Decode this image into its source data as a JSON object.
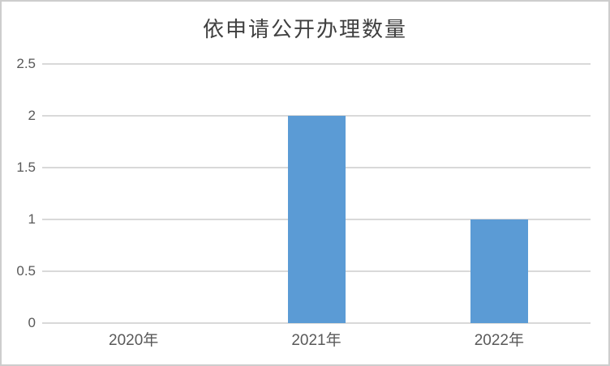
{
  "chart_data": {
    "type": "bar",
    "title": "依申请公开办理数量",
    "categories": [
      "2020年",
      "2021年",
      "2022年"
    ],
    "values": [
      0,
      2,
      1
    ],
    "xlabel": "",
    "ylabel": "",
    "ylim": [
      0,
      2.5
    ],
    "yticks": [
      0,
      0.5,
      1,
      1.5,
      2,
      2.5
    ],
    "grid": "horizontal",
    "legend": "none",
    "bar_color": "#5b9bd5",
    "gridline_color": "#d9d9d9",
    "title_color": "#3f3f3f",
    "axis_label_color": "#595959",
    "background_color": "#ffffff",
    "border_color": "#cdcdcd"
  }
}
